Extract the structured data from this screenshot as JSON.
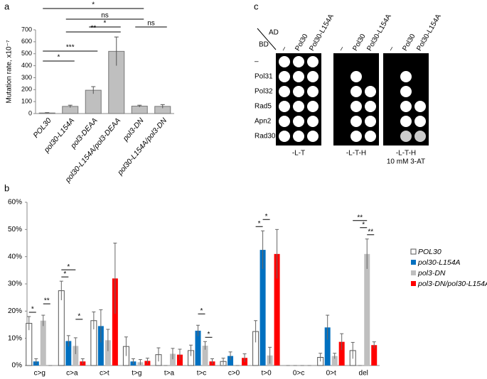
{
  "chart_data": [
    {
      "type": "bar",
      "panel": "a",
      "ylabel": "Mutation rate, x10⁻⁷",
      "categories": [
        "POL30",
        "pol30-L154A",
        "pol3-DEAA",
        "pol30-L154A/pol3-DEAA",
        "pol3-DN",
        "pol30-L154A/pol3-DN"
      ],
      "values": [
        5,
        60,
        195,
        520,
        62,
        60
      ],
      "errors": [
        3,
        10,
        30,
        120,
        8,
        15
      ],
      "color": "#bfbfbf",
      "ylim": [
        0,
        700
      ],
      "yticks": [
        0,
        100,
        200,
        300,
        400,
        500,
        600,
        700
      ],
      "brackets": [
        {
          "label": "*",
          "from": 0,
          "to": 4
        },
        {
          "label": "ns",
          "from": 1,
          "to": 4
        },
        {
          "label": "**",
          "from": 1,
          "to": 3
        },
        {
          "label": "*",
          "from": 2,
          "to": 3
        },
        {
          "label": "ns",
          "from": 4,
          "to": 5
        },
        {
          "label": "***",
          "from": 0,
          "to": 2
        },
        {
          "label": "*",
          "from": 0,
          "to": 1
        }
      ]
    },
    {
      "type": "grouped-bar",
      "panel": "b",
      "categories": [
        "c>g",
        "c>a",
        "c>t",
        "t>g",
        "t>a",
        "t>c",
        "c>0",
        "t>0",
        "0>c",
        "0>t",
        "del"
      ],
      "series": [
        {
          "name": "POL30",
          "color": "#ffffff",
          "values": [
            15.5,
            27.5,
            16.5,
            7,
            4,
            5.5,
            1.5,
            12.5,
            0,
            3,
            5.5
          ],
          "errors": [
            2.5,
            3.5,
            3.2,
            3.5,
            2.5,
            2,
            1.2,
            4,
            0,
            1.5,
            3
          ]
        },
        {
          "name": "pol30-L154A",
          "color": "#0070c0",
          "values": [
            1.5,
            9,
            14.5,
            1.5,
            0,
            12.8,
            3.5,
            42.5,
            0,
            14,
            0
          ],
          "errors": [
            1,
            2,
            6,
            1,
            0,
            2,
            1.5,
            7,
            0,
            4.5,
            0
          ]
        },
        {
          "name": "pol3-DN",
          "color": "#bfbfbf",
          "values": [
            16.5,
            7.2,
            9.3,
            1.2,
            4.3,
            7.3,
            0,
            3.7,
            0,
            3.5,
            41
          ],
          "errors": [
            2,
            3,
            4,
            1,
            2,
            1.5,
            0,
            3,
            0,
            1,
            5.5
          ]
        },
        {
          "name": "pol3-DN/pol30-L154A",
          "color": "#ff0000",
          "values": [
            0,
            1.5,
            32,
            1.7,
            4,
            1.5,
            2.8,
            41,
            0,
            8.7,
            7.5
          ],
          "errors": [
            0,
            1,
            13,
            1,
            2,
            1,
            1.5,
            9,
            0,
            3,
            1.2
          ]
        }
      ],
      "ylim": [
        0,
        60
      ],
      "yticks": [
        {
          "value": 0,
          "label": "0%"
        },
        {
          "value": 10,
          "label": "10%"
        },
        {
          "value": 20,
          "label": "20%"
        },
        {
          "value": 30,
          "label": "30%"
        },
        {
          "value": 40,
          "label": "40%"
        },
        {
          "value": 50,
          "label": "50%"
        },
        {
          "value": 60,
          "label": "60%"
        }
      ],
      "brackets": [
        {
          "label": "*",
          "category": 0,
          "from": 0,
          "to": 1
        },
        {
          "label": "**",
          "category": 0,
          "from": 2,
          "to": 3
        },
        {
          "label": "*",
          "category": 1,
          "from": 0,
          "to": 1
        },
        {
          "label": "*",
          "category": 1,
          "from": 0,
          "to": 2
        },
        {
          "label": "*",
          "category": 1,
          "from": 2,
          "to": 3
        },
        {
          "label": "*",
          "category": 5,
          "from": 2,
          "to": 3
        },
        {
          "label": "*",
          "category": 5,
          "from": 1,
          "to": 2
        },
        {
          "label": "*",
          "category": 7,
          "from": 0,
          "to": 1
        },
        {
          "label": "*",
          "category": 7,
          "from": 1,
          "to": 2
        },
        {
          "label": "**",
          "category": 10,
          "from": 2,
          "to": 3
        },
        {
          "label": "*",
          "category": 10,
          "from": 1,
          "to": 2
        },
        {
          "label": "**",
          "category": 10,
          "from": 0,
          "to": 2
        }
      ]
    }
  ],
  "spot_assay": {
    "panel": "c",
    "ad_label": "AD",
    "bd_label": "BD",
    "ad_columns": [
      "–",
      "Pol30",
      "Pol30-L154A"
    ],
    "bd_rows": [
      "–",
      "Pol31",
      "Pol32",
      "Rad5",
      "Apn2",
      "Rad30"
    ],
    "plates": [
      {
        "label": [
          "-L-T"
        ]
      },
      {
        "label": [
          "-L-T-H"
        ]
      },
      {
        "label": [
          "-L-T-H",
          "10 mM 3-AT"
        ]
      }
    ]
  }
}
